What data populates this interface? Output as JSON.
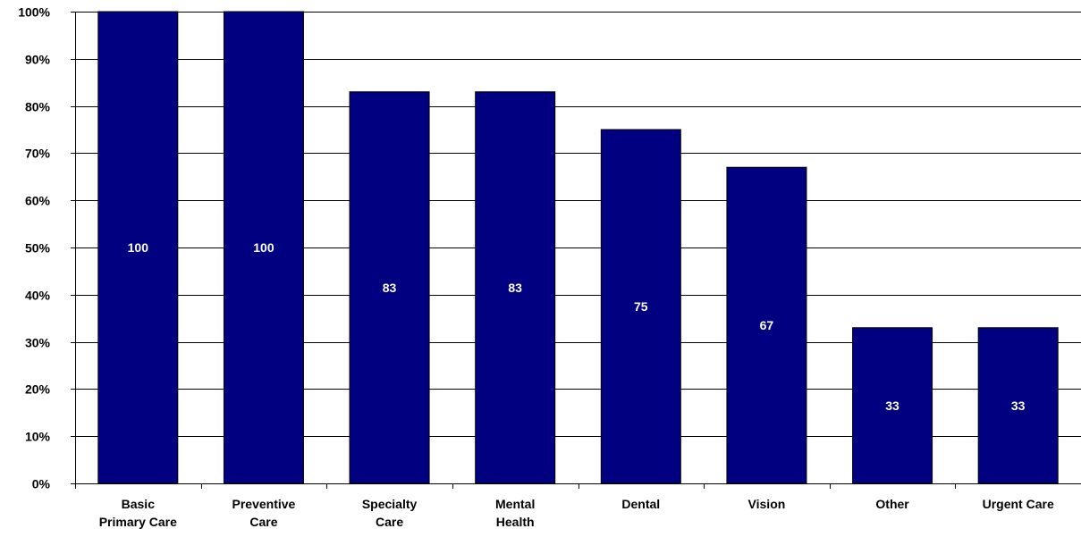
{
  "chart_data": {
    "type": "bar",
    "title": "",
    "xlabel": "",
    "ylabel": "",
    "categories": [
      [
        "Basic",
        "Primary Care"
      ],
      [
        "Preventive",
        "Care"
      ],
      [
        "Specialty",
        "Care"
      ],
      [
        "Mental",
        "Health"
      ],
      [
        "Dental"
      ],
      [
        "Vision"
      ],
      [
        "Other"
      ],
      [
        "Urgent Care"
      ]
    ],
    "values": [
      100,
      100,
      83,
      83,
      75,
      67,
      33,
      33
    ],
    "data_labels": [
      "100",
      "100",
      "83",
      "83",
      "75",
      "67",
      "33",
      "33"
    ],
    "ylim": [
      0,
      100
    ],
    "yticks": [
      0,
      10,
      20,
      30,
      40,
      50,
      60,
      70,
      80,
      90,
      100
    ],
    "ytick_labels": [
      "0%",
      "10%",
      "20%",
      "30%",
      "40%",
      "50%",
      "60%",
      "70%",
      "80%",
      "90%",
      "100%"
    ],
    "grid": true,
    "legend": "none",
    "bar_color": "#000080",
    "bar_edge_color": "#000000",
    "data_label_color": "#ffffff",
    "axis_color": "#000000",
    "grid_color": "#000000"
  }
}
